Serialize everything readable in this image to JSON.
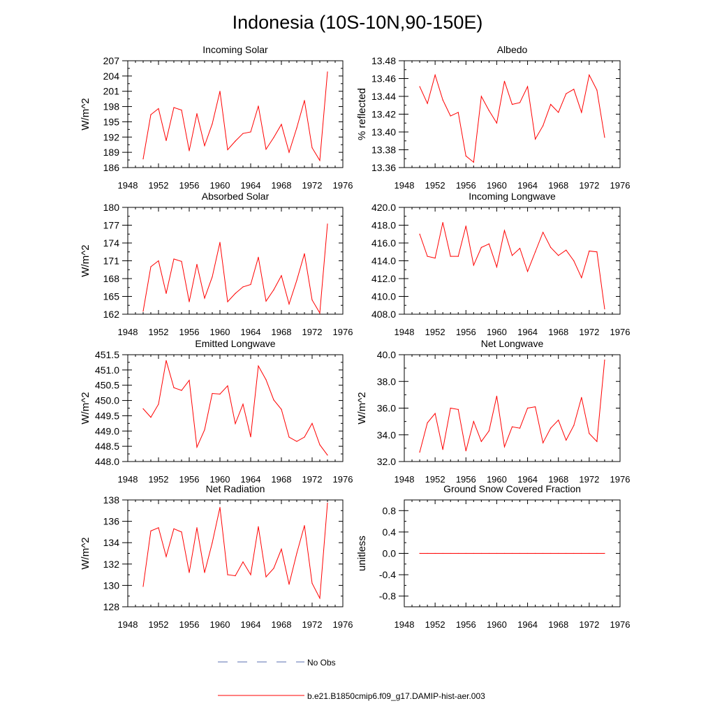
{
  "page": {
    "title": "Indonesia (10S-10N,90-150E)"
  },
  "legend": {
    "items": [
      {
        "label": "No Obs",
        "color": "#5a6fb0",
        "style": "dashed"
      },
      {
        "label": "b.e21.B1850cmip6.f09_g17.DAMIP-hist-aer.003",
        "color": "#ff0000",
        "style": "solid"
      }
    ]
  },
  "chart_data": [
    {
      "type": "line",
      "title": "Incoming Solar",
      "ylabel": "W/m^2",
      "xlim": [
        1948,
        1976
      ],
      "xticks": [
        1948,
        1952,
        1956,
        1960,
        1964,
        1968,
        1972,
        1976
      ],
      "ylim": [
        186,
        207
      ],
      "yticks": [
        186,
        189,
        192,
        195,
        198,
        201,
        204,
        207
      ],
      "ytick_labels": [
        "186",
        "189",
        "192",
        "195",
        "198",
        "201",
        "204",
        "207"
      ],
      "x": [
        1950,
        1951,
        1952,
        1953,
        1954,
        1955,
        1956,
        1957,
        1958,
        1959,
        1960,
        1961,
        1962,
        1963,
        1964,
        1965,
        1966,
        1967,
        1968,
        1969,
        1970,
        1971,
        1972,
        1973,
        1974
      ],
      "series": [
        {
          "name": "b.e21.B1850cmip6.f09_g17.DAMIP-hist-aer.003",
          "color": "#ff0000",
          "values": [
            187.7,
            196.4,
            197.6,
            191.3,
            197.8,
            197.3,
            189.3,
            196.6,
            190.3,
            194.6,
            201.0,
            189.5,
            191.2,
            192.7,
            193.0,
            198.1,
            189.6,
            191.9,
            194.5,
            189.0,
            193.8,
            199.2,
            189.9,
            187.4,
            204.8
          ]
        }
      ]
    },
    {
      "type": "line",
      "title": "Albedo",
      "ylabel": "% reflected",
      "xlim": [
        1948,
        1976
      ],
      "xticks": [
        1948,
        1952,
        1956,
        1960,
        1964,
        1968,
        1972,
        1976
      ],
      "ylim": [
        13.36,
        13.48
      ],
      "yticks": [
        13.36,
        13.38,
        13.4,
        13.42,
        13.44,
        13.46,
        13.48
      ],
      "ytick_labels": [
        "13.36",
        "13.38",
        "13.40",
        "13.42",
        "13.44",
        "13.46",
        "13.48"
      ],
      "x": [
        1950,
        1951,
        1952,
        1953,
        1954,
        1955,
        1956,
        1957,
        1958,
        1959,
        1960,
        1961,
        1962,
        1963,
        1964,
        1965,
        1966,
        1967,
        1968,
        1969,
        1970,
        1971,
        1972,
        1973,
        1974
      ],
      "series": [
        {
          "name": "b.e21.B1850cmip6.f09_g17.DAMIP-hist-aer.003",
          "color": "#ff0000",
          "values": [
            13.451,
            13.432,
            13.464,
            13.436,
            13.418,
            13.422,
            13.373,
            13.366,
            13.44,
            13.424,
            13.41,
            13.457,
            13.431,
            13.433,
            13.451,
            13.392,
            13.407,
            13.431,
            13.422,
            13.443,
            13.448,
            13.422,
            13.464,
            13.447,
            13.394
          ]
        }
      ]
    },
    {
      "type": "line",
      "title": "Absorbed Solar",
      "ylabel": "W/m^2",
      "xlim": [
        1948,
        1976
      ],
      "xticks": [
        1948,
        1952,
        1956,
        1960,
        1964,
        1968,
        1972,
        1976
      ],
      "ylim": [
        162,
        180
      ],
      "yticks": [
        162,
        165,
        168,
        171,
        174,
        177,
        180
      ],
      "ytick_labels": [
        "162",
        "165",
        "168",
        "171",
        "174",
        "177",
        "180"
      ],
      "x": [
        1950,
        1951,
        1952,
        1953,
        1954,
        1955,
        1956,
        1957,
        1958,
        1959,
        1960,
        1961,
        1962,
        1963,
        1964,
        1965,
        1966,
        1967,
        1968,
        1969,
        1970,
        1971,
        1972,
        1973,
        1974
      ],
      "series": [
        {
          "name": "b.e21.B1850cmip6.f09_g17.DAMIP-hist-aer.003",
          "color": "#ff0000",
          "values": [
            162.5,
            170.0,
            171.0,
            165.5,
            171.3,
            170.9,
            164.1,
            170.4,
            164.7,
            168.3,
            174.1,
            164.1,
            165.5,
            166.6,
            167.0,
            171.6,
            164.2,
            166.1,
            168.5,
            163.7,
            167.7,
            172.2,
            164.4,
            162.2,
            177.2
          ]
        }
      ]
    },
    {
      "type": "line",
      "title": "Incoming Longwave",
      "ylabel": "",
      "xlim": [
        1948,
        1976
      ],
      "xticks": [
        1948,
        1952,
        1956,
        1960,
        1964,
        1968,
        1972,
        1976
      ],
      "ylim": [
        408,
        420
      ],
      "yticks": [
        408,
        410,
        412,
        414,
        416,
        418,
        420
      ],
      "ytick_labels": [
        "408.0",
        "410.0",
        "412.0",
        "414.0",
        "416.0",
        "418.0",
        "420.0"
      ],
      "x": [
        1950,
        1951,
        1952,
        1953,
        1954,
        1955,
        1956,
        1957,
        1958,
        1959,
        1960,
        1961,
        1962,
        1963,
        1964,
        1965,
        1966,
        1967,
        1968,
        1969,
        1970,
        1971,
        1972,
        1973,
        1974
      ],
      "series": [
        {
          "name": "b.e21.B1850cmip6.f09_g17.DAMIP-hist-aer.003",
          "color": "#ff0000",
          "values": [
            417.0,
            414.5,
            414.3,
            418.3,
            414.5,
            414.5,
            417.9,
            413.5,
            415.5,
            415.9,
            413.3,
            417.4,
            414.6,
            415.4,
            412.8,
            415.0,
            417.2,
            415.5,
            414.6,
            415.2,
            414.0,
            412.1,
            415.1,
            415.0,
            408.6
          ]
        }
      ]
    },
    {
      "type": "line",
      "title": "Emitted Longwave",
      "ylabel": "W/m^2",
      "xlim": [
        1948,
        1976
      ],
      "xticks": [
        1948,
        1952,
        1956,
        1960,
        1964,
        1968,
        1972,
        1976
      ],
      "ylim": [
        448,
        451.5
      ],
      "yticks": [
        448,
        448.5,
        449,
        449.5,
        450,
        450.5,
        451,
        451.5
      ],
      "ytick_labels": [
        "448.0",
        "448.5",
        "449.0",
        "449.5",
        "450.0",
        "450.5",
        "451.0",
        "451.5"
      ],
      "x": [
        1950,
        1951,
        1952,
        1953,
        1954,
        1955,
        1956,
        1957,
        1958,
        1959,
        1960,
        1961,
        1962,
        1963,
        1964,
        1965,
        1966,
        1967,
        1968,
        1969,
        1970,
        1971,
        1972,
        1973,
        1974
      ],
      "series": [
        {
          "name": "b.e21.B1850cmip6.f09_g17.DAMIP-hist-aer.003",
          "color": "#ff0000",
          "values": [
            449.73,
            449.45,
            449.88,
            451.31,
            450.42,
            450.33,
            450.66,
            448.47,
            449.04,
            450.23,
            450.21,
            450.48,
            449.24,
            449.88,
            448.81,
            451.13,
            450.68,
            450.02,
            449.71,
            448.8,
            448.66,
            448.8,
            449.25,
            448.55,
            448.21
          ]
        }
      ]
    },
    {
      "type": "line",
      "title": "Net Longwave",
      "ylabel": "W/m^2",
      "xlim": [
        1948,
        1976
      ],
      "xticks": [
        1948,
        1952,
        1956,
        1960,
        1964,
        1968,
        1972,
        1976
      ],
      "ylim": [
        32,
        40
      ],
      "yticks": [
        32,
        34,
        36,
        38,
        40
      ],
      "ytick_labels": [
        "32.0",
        "34.0",
        "36.0",
        "38.0",
        "40.0"
      ],
      "x": [
        1950,
        1951,
        1952,
        1953,
        1954,
        1955,
        1956,
        1957,
        1958,
        1959,
        1960,
        1961,
        1962,
        1963,
        1964,
        1965,
        1966,
        1967,
        1968,
        1969,
        1970,
        1971,
        1972,
        1973,
        1974
      ],
      "series": [
        {
          "name": "b.e21.B1850cmip6.f09_g17.DAMIP-hist-aer.003",
          "color": "#ff0000",
          "values": [
            32.7,
            34.9,
            35.6,
            32.9,
            36.0,
            35.9,
            32.8,
            35.0,
            33.5,
            34.3,
            36.9,
            33.1,
            34.6,
            34.5,
            36.0,
            36.1,
            33.4,
            34.5,
            35.1,
            33.6,
            34.7,
            36.8,
            34.1,
            33.5,
            39.6
          ]
        }
      ]
    },
    {
      "type": "line",
      "title": "Net Radiation",
      "ylabel": "W/m^2",
      "xlim": [
        1948,
        1976
      ],
      "xticks": [
        1948,
        1952,
        1956,
        1960,
        1964,
        1968,
        1972,
        1976
      ],
      "ylim": [
        128,
        138
      ],
      "yticks": [
        128,
        130,
        132,
        134,
        136,
        138
      ],
      "ytick_labels": [
        "128",
        "130",
        "132",
        "134",
        "136",
        "138"
      ],
      "x": [
        1950,
        1951,
        1952,
        1953,
        1954,
        1955,
        1956,
        1957,
        1958,
        1959,
        1960,
        1961,
        1962,
        1963,
        1964,
        1965,
        1966,
        1967,
        1968,
        1969,
        1970,
        1971,
        1972,
        1973,
        1974
      ],
      "series": [
        {
          "name": "b.e21.B1850cmip6.f09_g17.DAMIP-hist-aer.003",
          "color": "#ff0000",
          "values": [
            129.9,
            135.1,
            135.4,
            132.7,
            135.3,
            135.0,
            131.2,
            135.4,
            131.2,
            134.0,
            137.3,
            131.0,
            130.9,
            132.2,
            131.0,
            135.5,
            130.8,
            131.6,
            133.4,
            130.1,
            133.0,
            135.6,
            130.2,
            128.8,
            137.7
          ]
        }
      ]
    },
    {
      "type": "line",
      "title": "Ground Snow Covered Fraction",
      "ylabel": "unitless",
      "xlim": [
        1948,
        1976
      ],
      "xticks": [
        1948,
        1952,
        1956,
        1960,
        1964,
        1968,
        1972,
        1976
      ],
      "ylim": [
        -1.0,
        1.0
      ],
      "yticks": [
        -0.8,
        -0.4,
        0.0,
        0.4,
        0.8
      ],
      "ytick_labels": [
        "-0.8",
        "-0.4",
        "0.0",
        "0.4",
        "0.8"
      ],
      "x": [
        1950,
        1951,
        1952,
        1953,
        1954,
        1955,
        1956,
        1957,
        1958,
        1959,
        1960,
        1961,
        1962,
        1963,
        1964,
        1965,
        1966,
        1967,
        1968,
        1969,
        1970,
        1971,
        1972,
        1973,
        1974
      ],
      "series": [
        {
          "name": "b.e21.B1850cmip6.f09_g17.DAMIP-hist-aer.003",
          "color": "#ff0000",
          "values": [
            0,
            0,
            0,
            0,
            0,
            0,
            0,
            0,
            0,
            0,
            0,
            0,
            0,
            0,
            0,
            0,
            0,
            0,
            0,
            0,
            0,
            0,
            0,
            0,
            0
          ]
        }
      ]
    }
  ]
}
